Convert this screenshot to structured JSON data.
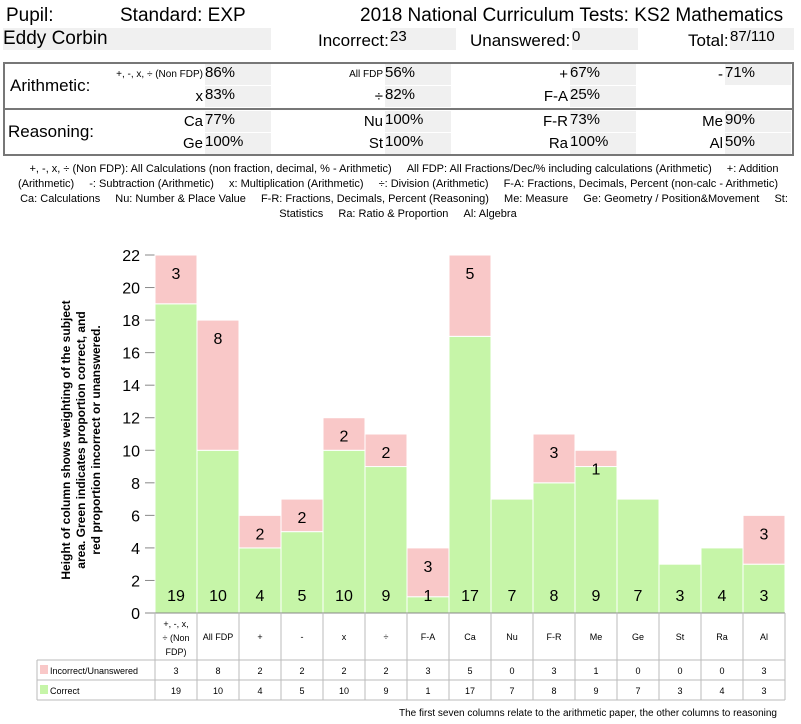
{
  "header": {
    "pupil_label": "Pupil:",
    "standard": "Standard: EXP",
    "title": "2018 National Curriculum Tests: KS2 Mathematics",
    "pupil_name": "Eddy Corbin",
    "incorrect_label": "Incorrect:",
    "incorrect": "23",
    "unanswered_label": "Unanswered:",
    "unanswered": "0",
    "total_label": "Total:",
    "total": "87/110"
  },
  "summary": {
    "arithmetic_label": "Arithmetic:",
    "reasoning_label": "Reasoning:",
    "arithmetic": [
      {
        "label": "+, -, x, ÷ (Non FDP)",
        "value": "86%"
      },
      {
        "label": "All FDP",
        "value": "56%"
      },
      {
        "label": "+",
        "value": "67%"
      },
      {
        "label": "-",
        "value": "71%"
      },
      {
        "label": "x",
        "value": "83%"
      },
      {
        "label": "÷",
        "value": "82%"
      },
      {
        "label": "F-A",
        "value": "25%"
      }
    ],
    "reasoning": [
      {
        "label": "Ca",
        "value": "77%"
      },
      {
        "label": "Nu",
        "value": "100%"
      },
      {
        "label": "F-R",
        "value": "73%"
      },
      {
        "label": "Me",
        "value": "90%"
      },
      {
        "label": "Ge",
        "value": "100%"
      },
      {
        "label": "St",
        "value": "100%"
      },
      {
        "label": "Ra",
        "value": "100%"
      },
      {
        "label": "Al",
        "value": "50%"
      }
    ]
  },
  "legend_text": [
    "+, -, x, ÷ (Non FDP): All Calculations (non fraction, decimal, % - Arithmetic)",
    "All FDP: All Fractions/Dec/% including calculations (Arithmetic)",
    "+: Addition (Arithmetic)",
    "-: Subtraction (Arithmetic)",
    "x: Multiplication (Arithmetic)",
    "÷: Division (Arithmetic)",
    "F-A: Fractions, Decimals, Percent (non-calc - Arithmetic)",
    "Ca: Calculations",
    "Nu: Number & Place Value",
    "F-R: Fractions, Decimals, Percent  (Reasoning)",
    "Me: Measure",
    "Ge: Geometry / Position&Movement",
    "St: Statistics",
    "Ra: Ratio & Proportion",
    "Al: Algebra"
  ],
  "chart_data": {
    "type": "bar",
    "stacked": true,
    "ylabel": "Height of column shows weighting of the subject area. Green indicates proportion correct, and red proportion incorrect or unanswered.",
    "ylim": [
      0,
      22
    ],
    "yticks": [
      0,
      2,
      4,
      6,
      8,
      10,
      12,
      14,
      16,
      18,
      20,
      22
    ],
    "categories": [
      "+, -, x, ÷ (Non FDP)",
      "All FDP",
      "+",
      "-",
      "x",
      "÷",
      "F-A",
      "Ca",
      "Nu",
      "F-R",
      "Me",
      "Ge",
      "St",
      "Ra",
      "Al"
    ],
    "series": [
      {
        "name": "Correct",
        "color": "#c6f5a8",
        "values": [
          19,
          10,
          4,
          5,
          10,
          9,
          1,
          17,
          7,
          8,
          9,
          7,
          3,
          4,
          3
        ]
      },
      {
        "name": "Incorrect/Unanswered",
        "color": "#f9c8c8",
        "values": [
          3,
          8,
          2,
          2,
          2,
          2,
          3,
          5,
          0,
          3,
          1,
          0,
          0,
          0,
          3
        ]
      }
    ],
    "footnote": "The first seven columns relate to the arithmetic paper, the other columns to reasoning"
  }
}
